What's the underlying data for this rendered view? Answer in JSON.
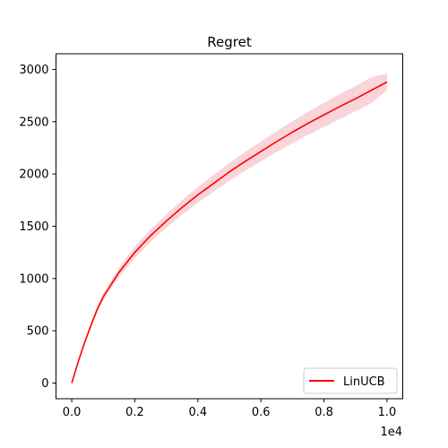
{
  "chart_data": {
    "type": "line",
    "title": "Regret",
    "xlabel": "",
    "ylabel": "",
    "x_offset_label": "1e4",
    "xlim": [
      -0.05,
      1.05
    ],
    "ylim": [
      -150,
      3150
    ],
    "xticks": [
      0.0,
      0.2,
      0.4,
      0.6,
      0.8,
      1.0
    ],
    "xtick_labels": [
      "0.0",
      "0.2",
      "0.4",
      "0.6",
      "0.8",
      "1.0"
    ],
    "yticks": [
      0,
      500,
      1000,
      1500,
      2000,
      2500,
      3000
    ],
    "ytick_labels": [
      "0",
      "500",
      "1000",
      "1500",
      "2000",
      "2500",
      "3000"
    ],
    "grid": false,
    "legend_position": "lower-right",
    "series": [
      {
        "name": "LinUCB",
        "color": "#ff0000",
        "band_color": "#f7c6cc",
        "x": [
          0.0,
          0.02,
          0.04,
          0.06,
          0.08,
          0.1,
          0.15,
          0.2,
          0.25,
          0.3,
          0.35,
          0.4,
          0.45,
          0.5,
          0.55,
          0.6,
          0.65,
          0.7,
          0.75,
          0.8,
          0.85,
          0.9,
          0.95,
          1.0
        ],
        "y": [
          0,
          200,
          380,
          545,
          700,
          825,
          1060,
          1250,
          1410,
          1550,
          1680,
          1800,
          1910,
          2020,
          2120,
          2215,
          2310,
          2400,
          2485,
          2565,
          2645,
          2720,
          2800,
          2880
        ],
        "y_lower": [
          0,
          192,
          366,
          524,
          674,
          792,
          1015,
          1195,
          1350,
          1485,
          1610,
          1725,
          1830,
          1935,
          2030,
          2120,
          2210,
          2295,
          2375,
          2450,
          2525,
          2600,
          2675,
          2800
        ],
        "y_upper": [
          0,
          208,
          394,
          566,
          726,
          858,
          1105,
          1305,
          1470,
          1615,
          1750,
          1875,
          1990,
          2105,
          2210,
          2310,
          2410,
          2505,
          2595,
          2680,
          2765,
          2840,
          2925,
          2960
        ]
      }
    ]
  }
}
